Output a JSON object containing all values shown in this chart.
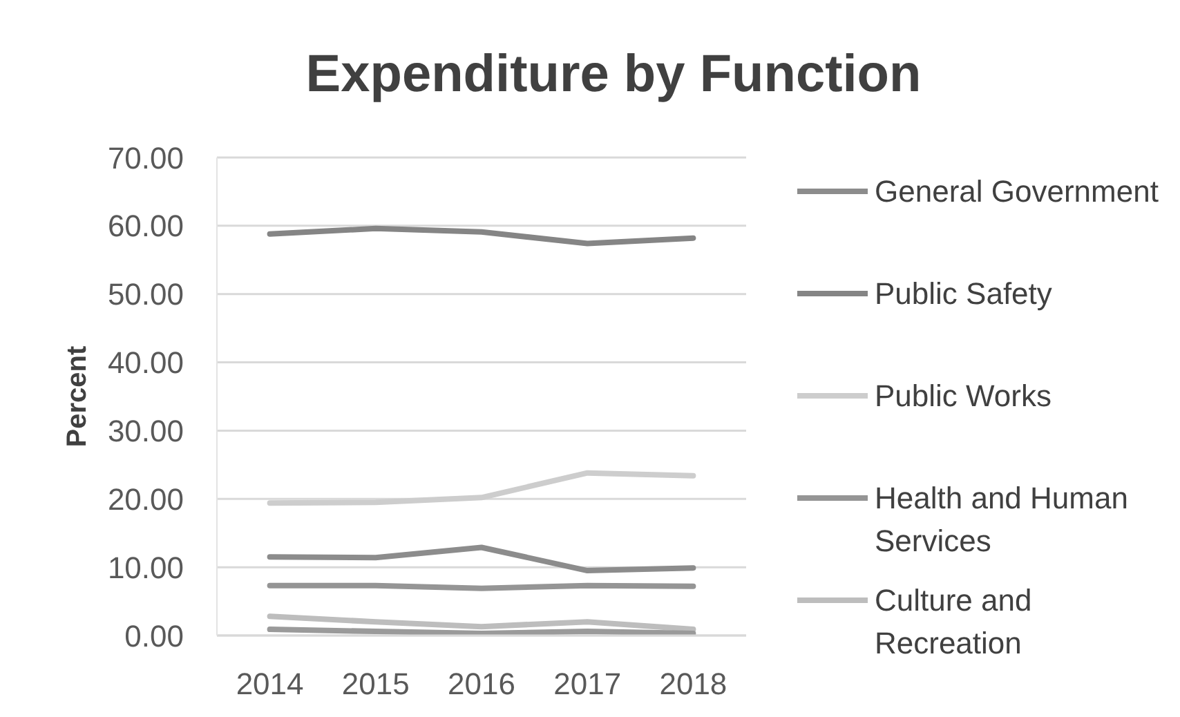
{
  "chart_data": {
    "type": "line",
    "title": "Expenditure by Function",
    "ylabel": "Percent",
    "categories": [
      "2014",
      "2015",
      "2016",
      "2017",
      "2018"
    ],
    "series": [
      {
        "name": "General Government",
        "color": "#8c8c8c",
        "values": [
          11.5,
          11.4,
          12.9,
          9.5,
          9.9
        ]
      },
      {
        "name": "Public Safety",
        "color": "#858585",
        "values": [
          58.8,
          59.6,
          59.1,
          57.4,
          58.2
        ]
      },
      {
        "name": "Public Works",
        "color": "#cdcdcd",
        "values": [
          19.4,
          19.5,
          20.2,
          23.8,
          23.4
        ]
      },
      {
        "name": "Health and Human Services",
        "color": "#959595",
        "values": [
          7.3,
          7.3,
          6.9,
          7.3,
          7.2
        ]
      },
      {
        "name": "Culture and Recreation",
        "color": "#bdbdbd",
        "values": [
          2.8,
          2.0,
          1.3,
          2.0,
          0.9
        ]
      },
      {
        "color": "#9a9a9a",
        "values": [
          0.9,
          0.6,
          0.3,
          0.6,
          0.3
        ]
      }
    ],
    "ylim": [
      0,
      70
    ],
    "yticks": [
      {
        "value": 0,
        "label": "0.00"
      },
      {
        "value": 10,
        "label": "10.00"
      },
      {
        "value": 20,
        "label": "20.00"
      },
      {
        "value": 30,
        "label": "30.00"
      },
      {
        "value": 40,
        "label": "40.00"
      },
      {
        "value": 50,
        "label": "50.00"
      },
      {
        "value": 60,
        "label": "60.00"
      },
      {
        "value": 70,
        "label": "70.00"
      }
    ],
    "grid": "y",
    "legend": "right",
    "marker": "none",
    "line_style": "solid"
  }
}
